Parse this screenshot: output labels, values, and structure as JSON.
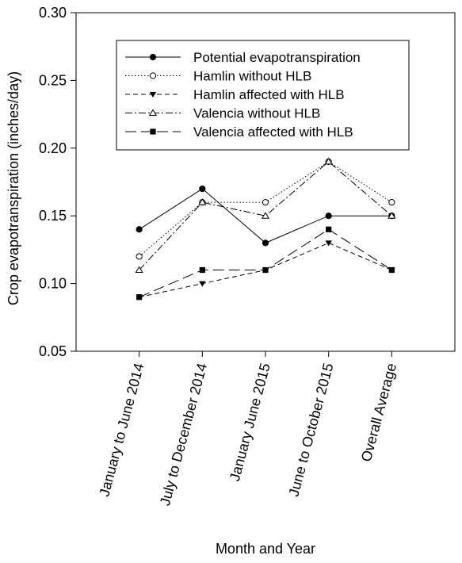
{
  "chart_data": {
    "type": "line",
    "title": "",
    "xlabel": "Month and Year",
    "ylabel": "Crop evapotranspiration (inches/day)",
    "categories": [
      "January to June 2014",
      "July to December 2014",
      "January June 2015",
      "June to October 2015",
      "Overall Average"
    ],
    "ylim": [
      0.05,
      0.3
    ],
    "yticks": [
      "0.05",
      "0.10",
      "0.15",
      "0.20",
      "0.25",
      "0.30"
    ],
    "grid": false,
    "legend_position": "top-right",
    "series": [
      {
        "name": "Potential evapotranspiration",
        "values": [
          0.14,
          0.17,
          0.13,
          0.15,
          0.15
        ],
        "line": "solid",
        "marker": "filled-circle"
      },
      {
        "name": "Hamlin without HLB",
        "values": [
          0.12,
          0.16,
          0.16,
          0.19,
          0.16
        ],
        "line": "dotted",
        "marker": "open-circle"
      },
      {
        "name": "Hamlin affected with HLB",
        "values": [
          0.09,
          0.1,
          0.11,
          0.13,
          0.11
        ],
        "line": "short-dash",
        "marker": "filled-triangle-down"
      },
      {
        "name": "Valencia without HLB",
        "values": [
          0.11,
          0.16,
          0.15,
          0.19,
          0.15
        ],
        "line": "dash-dot",
        "marker": "open-triangle-up"
      },
      {
        "name": "Valencia affected with HLB",
        "values": [
          0.09,
          0.11,
          0.11,
          0.14,
          0.11
        ],
        "line": "long-dash",
        "marker": "filled-square"
      }
    ]
  }
}
